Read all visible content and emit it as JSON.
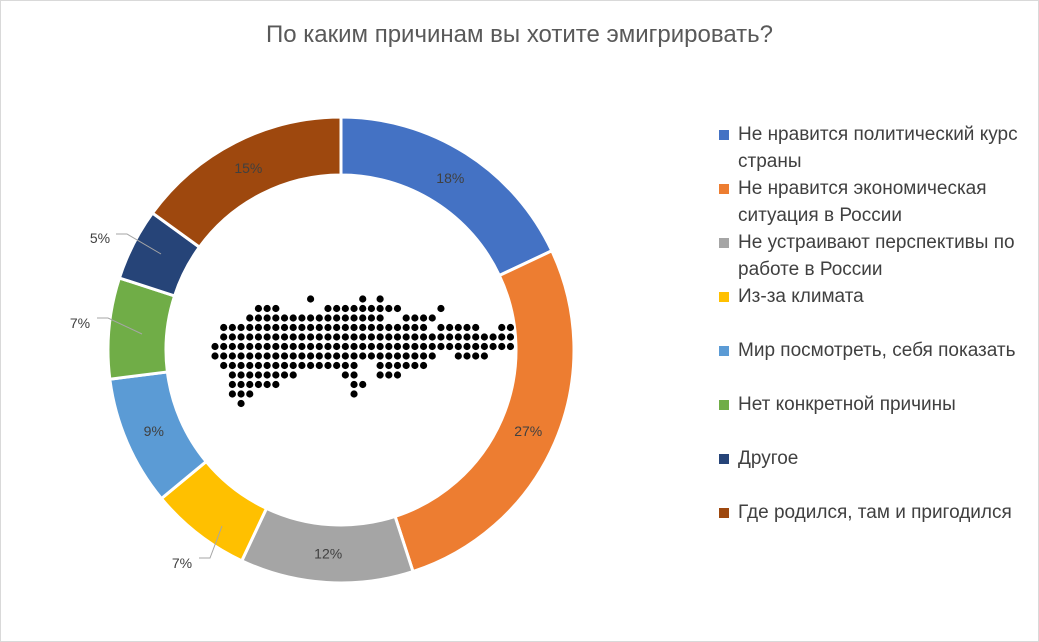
{
  "chart_data": {
    "type": "pie",
    "title": "По каким причинам вы хотите эмигрировать?",
    "donut": true,
    "legend_position": "right",
    "slices": [
      {
        "label": "Не нравится политический курс страны",
        "value": 18,
        "value_label": "18%",
        "color": "#4472C4"
      },
      {
        "label": "Не нравится экономическая ситуация в России",
        "value": 27,
        "value_label": "27%",
        "color": "#ED7D31"
      },
      {
        "label": "Не устраивают перспективы по работе в России",
        "value": 12,
        "value_label": "12%",
        "color": "#A5A5A5"
      },
      {
        "label": "Из-за климата",
        "value": 7,
        "value_label": "7%",
        "color": "#FFC000"
      },
      {
        "label": "Мир посмотреть, себя показать",
        "value": 9,
        "value_label": "9%",
        "color": "#5B9BD5"
      },
      {
        "label": "Нет конкретной причины",
        "value": 7,
        "value_label": "7%",
        "color": "#70AD47"
      },
      {
        "label": "Другое",
        "value": 5,
        "value_label": "5%",
        "color": "#264478"
      },
      {
        "label": "Где родился, там и пригодился",
        "value": 15,
        "value_label": "15%",
        "color": "#9E480E"
      }
    ]
  },
  "center_icon": "russia-dot-map-icon"
}
